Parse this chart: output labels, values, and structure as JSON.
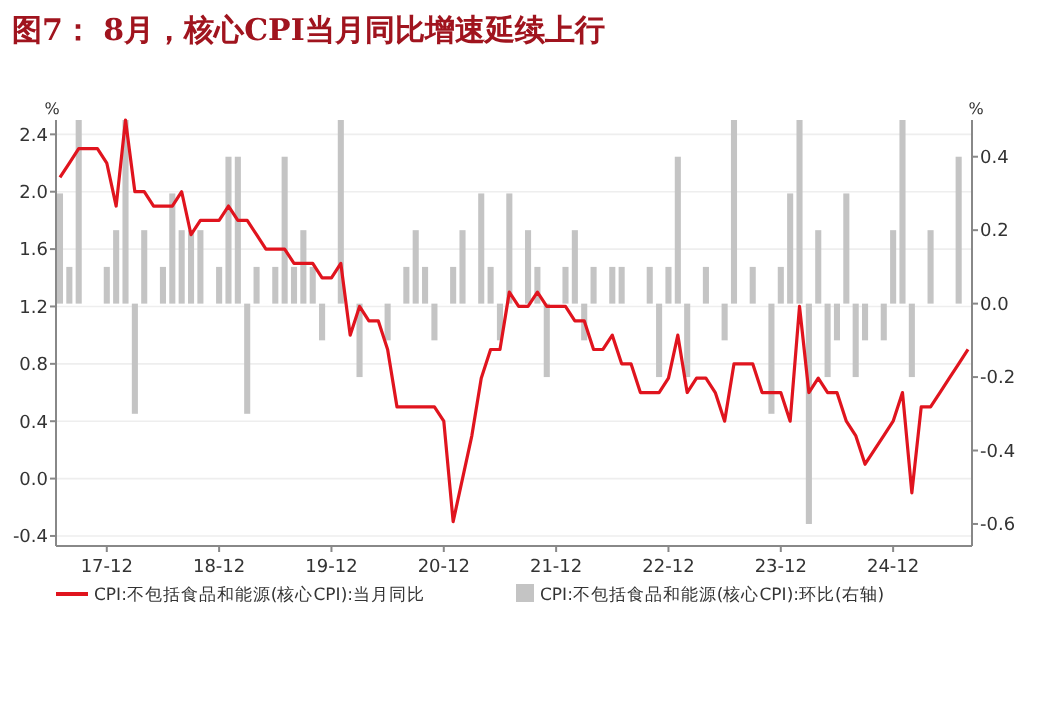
{
  "chart_data": {
    "type": "line",
    "title": "图7：   8月，核心CPI当月同比增速延续上行",
    "ylabel": "%",
    "y2label": "%",
    "categories": [
      null,
      null,
      null,
      null,
      null,
      "17-12",
      null,
      null,
      null,
      null,
      null,
      null,
      null,
      null,
      null,
      null,
      null,
      "18-12",
      null,
      null,
      null,
      null,
      null,
      null,
      null,
      null,
      null,
      null,
      null,
      "19-12",
      null,
      null,
      null,
      null,
      null,
      null,
      null,
      null,
      null,
      null,
      null,
      "20-12",
      null,
      null,
      null,
      null,
      null,
      null,
      null,
      null,
      null,
      null,
      null,
      "21-12",
      null,
      null,
      null,
      null,
      null,
      null,
      null,
      null,
      null,
      null,
      null,
      "22-12",
      null,
      null,
      null,
      null,
      null,
      null,
      null,
      null,
      null,
      null,
      null,
      "23-12",
      null,
      null,
      null,
      null,
      null,
      null,
      null,
      null,
      null,
      null,
      null,
      "24-12",
      null,
      null,
      null,
      null,
      null,
      null,
      null,
      null
    ],
    "series": [
      {
        "name": "CPI:不包括食品和能源(核心CPI):当月同比",
        "color": "#e0141e",
        "values": [
          2.1,
          2.2,
          2.3,
          2.3,
          2.3,
          2.2,
          1.9,
          2.5,
          2.0,
          2.0,
          1.9,
          1.9,
          1.9,
          2.0,
          1.7,
          1.8,
          1.8,
          1.8,
          1.9,
          1.8,
          1.8,
          1.7,
          1.6,
          1.6,
          1.6,
          1.5,
          1.5,
          1.5,
          1.4,
          1.4,
          1.5,
          1.0,
          1.2,
          1.1,
          1.1,
          0.9,
          0.5,
          0.5,
          0.5,
          0.5,
          0.5,
          0.4,
          -0.3,
          0.0,
          0.3,
          0.7,
          0.9,
          0.9,
          1.3,
          1.2,
          1.2,
          1.3,
          1.2,
          1.2,
          1.2,
          1.1,
          1.1,
          0.9,
          0.9,
          1.0,
          0.8,
          0.8,
          0.6,
          0.6,
          0.6,
          0.7,
          1.0,
          0.6,
          0.7,
          0.7,
          0.6,
          0.4,
          0.8,
          0.8,
          0.8,
          0.6,
          0.6,
          0.6,
          0.4,
          1.2,
          0.6,
          0.7,
          0.6,
          0.6,
          0.4,
          0.3,
          0.1,
          0.2,
          0.3,
          0.4,
          0.6,
          -0.1,
          0.5,
          0.5,
          0.6,
          0.7,
          0.8,
          0.9
        ]
      },
      {
        "name": "CPI:不包括食品和能源(核心CPI):环比(右轴)",
        "type": "bar",
        "axis": "y2",
        "color": "#c4c4c4",
        "values": [
          0.3,
          0.1,
          0.5,
          0,
          0,
          0.1,
          0.2,
          0.5,
          -0.3,
          0.2,
          0,
          0.1,
          0.3,
          0.2,
          0.2,
          0.2,
          0,
          0.1,
          0.4,
          0.4,
          -0.3,
          0.1,
          0,
          0.1,
          0.4,
          0.1,
          0.2,
          0.1,
          -0.1,
          0,
          0.5,
          0,
          -0.2,
          0,
          0,
          -0.1,
          0,
          0.1,
          0.2,
          0.1,
          -0.1,
          0,
          0.1,
          0.2,
          0,
          0.3,
          0.1,
          -0.1,
          0.3,
          0,
          0.2,
          0.1,
          -0.2,
          0,
          0.1,
          0.2,
          -0.1,
          0.1,
          0,
          0.1,
          0.1,
          0,
          0,
          0.1,
          -0.2,
          0.1,
          0.4,
          -0.2,
          0,
          0.1,
          0,
          -0.1,
          0.5,
          0,
          0.1,
          0,
          -0.3,
          0.1,
          0.3,
          0.5,
          -0.6,
          0.2,
          -0.2,
          -0.1,
          0.3,
          -0.2,
          -0.1,
          0,
          -0.1,
          0.2,
          0.5,
          -0.2,
          0,
          0.2,
          0,
          0,
          0.4,
          0
        ]
      }
    ],
    "ylim": [
      -0.47,
      2.5
    ],
    "yticks": [
      -0.4,
      {
        "value": 0,
        "label": "0.0"
      },
      0.4,
      0.8,
      1.2,
      1.6,
      {
        "value": 2,
        "label": "2.0"
      },
      2.4
    ],
    "y2lim": [
      -0.66,
      0.5
    ],
    "y2ticks": [
      -0.6,
      -0.4,
      -0.2,
      {
        "value": 0,
        "label": "0.0"
      },
      0.2,
      0.4
    ],
    "grid": "y",
    "legend": "bottom"
  }
}
